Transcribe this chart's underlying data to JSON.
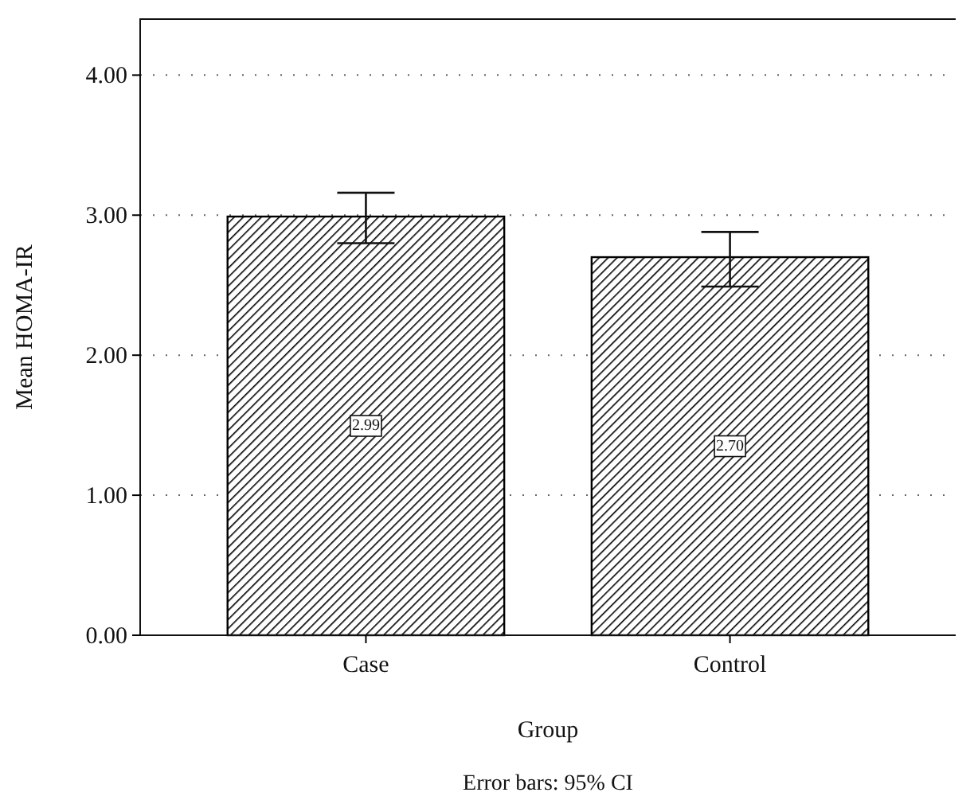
{
  "chart_data": {
    "type": "bar",
    "xlabel": "Group",
    "ylabel": "Mean HOMA-IR",
    "categories": [
      "Case",
      "Control"
    ],
    "values": [
      2.99,
      2.7
    ],
    "value_labels": [
      "2.99",
      "2.70"
    ],
    "errors": [
      [
        2.8,
        3.16
      ],
      [
        2.49,
        2.88
      ]
    ],
    "color": "#000000",
    "ylim": [
      0,
      4.4
    ],
    "yticks": [
      {
        "value": 0,
        "label": "0.00"
      },
      {
        "value": 1,
        "label": "1.00"
      },
      {
        "value": 2,
        "label": "2.00"
      },
      {
        "value": 3,
        "label": "3.00"
      },
      {
        "value": 4,
        "label": "4.00"
      }
    ],
    "grid": "y",
    "annotations": [
      "Error bars: 95% CI"
    ]
  }
}
